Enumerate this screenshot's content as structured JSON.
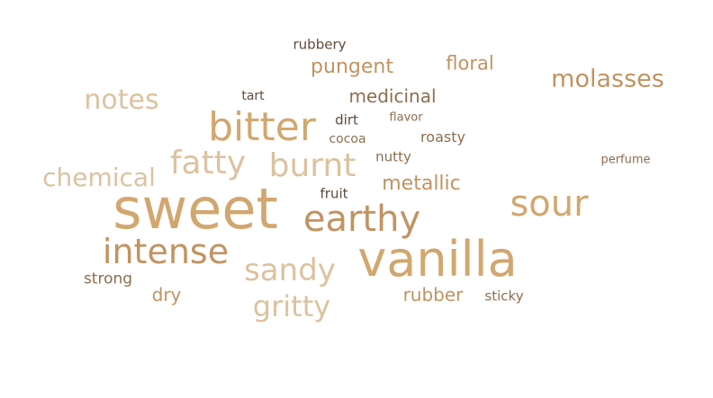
{
  "palette": {
    "tan_light": "#dcc29f",
    "tan": "#d2a76f",
    "tan_dark": "#c29361",
    "brown": "#8d6e4f",
    "dark": "#5e4a3a"
  },
  "words": [
    {
      "text": "sweet",
      "weight": 62,
      "color": "tan"
    },
    {
      "text": "vanilla",
      "weight": 54,
      "color": "tan"
    },
    {
      "text": "bitter",
      "weight": 44,
      "color": "tan"
    },
    {
      "text": "earthy",
      "weight": 40,
      "color": "tan_dark"
    },
    {
      "text": "sour",
      "weight": 40,
      "color": "tan"
    },
    {
      "text": "intense",
      "weight": 38,
      "color": "tan_dark"
    },
    {
      "text": "fatty",
      "weight": 36,
      "color": "tan_light"
    },
    {
      "text": "burnt",
      "weight": 36,
      "color": "tan_light"
    },
    {
      "text": "sandy",
      "weight": 34,
      "color": "tan_light"
    },
    {
      "text": "gritty",
      "weight": 32,
      "color": "tan_light"
    },
    {
      "text": "notes",
      "weight": 30,
      "color": "tan_light"
    },
    {
      "text": "chemical",
      "weight": 28,
      "color": "tan_light"
    },
    {
      "text": "molasses",
      "weight": 27,
      "color": "tan_dark"
    },
    {
      "text": "pungent",
      "weight": 22,
      "color": "tan_dark"
    },
    {
      "text": "metallic",
      "weight": 22,
      "color": "tan_dark"
    },
    {
      "text": "floral",
      "weight": 21,
      "color": "tan_dark"
    },
    {
      "text": "medicinal",
      "weight": 20,
      "color": "brown"
    },
    {
      "text": "rubber",
      "weight": 20,
      "color": "tan_dark"
    },
    {
      "text": "dry",
      "weight": 20,
      "color": "tan_dark"
    },
    {
      "text": "strong",
      "weight": 17,
      "color": "brown"
    },
    {
      "text": "roasty",
      "weight": 16,
      "color": "brown"
    },
    {
      "text": "nutty",
      "weight": 15,
      "color": "brown"
    },
    {
      "text": "sticky",
      "weight": 15,
      "color": "brown"
    },
    {
      "text": "rubbery",
      "weight": 15,
      "color": "dark"
    },
    {
      "text": "dirt",
      "weight": 15,
      "color": "dark"
    },
    {
      "text": "fruit",
      "weight": 15,
      "color": "dark"
    },
    {
      "text": "cocoa",
      "weight": 14,
      "color": "brown"
    },
    {
      "text": "tart",
      "weight": 14,
      "color": "dark"
    },
    {
      "text": "flavor",
      "weight": 13,
      "color": "brown"
    },
    {
      "text": "perfume",
      "weight": 13,
      "color": "brown"
    }
  ]
}
